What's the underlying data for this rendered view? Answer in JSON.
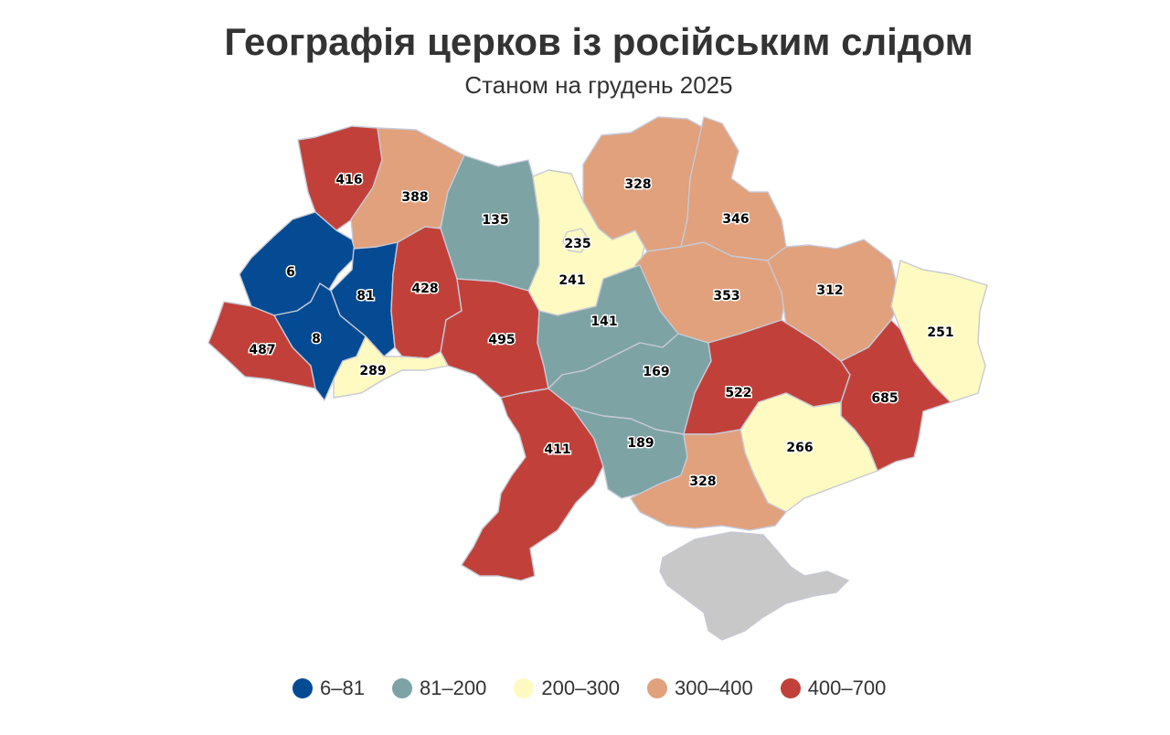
{
  "title": "Географія церков із російським слідом",
  "subtitle": "Станом на грудень 2025",
  "colors": {
    "c1": "#044b94",
    "c2": "#7da3a5",
    "c3": "#fffac1",
    "c4": "#e0a17c",
    "c5": "#c1413a",
    "occupied": "#c8c8c8"
  },
  "legend": [
    {
      "label": "6–81",
      "color": "#044b94"
    },
    {
      "label": "81–200",
      "color": "#7da3a5"
    },
    {
      "label": "200–300",
      "color": "#fffac1"
    },
    {
      "label": "300–400",
      "color": "#e0a17c"
    },
    {
      "label": "400–700",
      "color": "#c1413a"
    }
  ],
  "regions": [
    {
      "id": "volyn",
      "value": 416
    },
    {
      "id": "rivne",
      "value": 388
    },
    {
      "id": "zhytomyr",
      "value": 135
    },
    {
      "id": "kyiv-oblast",
      "value": 235
    },
    {
      "id": "kyiv-city",
      "value": 241
    },
    {
      "id": "chernihiv",
      "value": 328
    },
    {
      "id": "sumy",
      "value": 346
    },
    {
      "id": "poltava",
      "value": 353
    },
    {
      "id": "kharkiv",
      "value": 312
    },
    {
      "id": "luhansk",
      "value": 251
    },
    {
      "id": "lviv",
      "value": 6
    },
    {
      "id": "ternopil",
      "value": 81
    },
    {
      "id": "khmelnytskyi",
      "value": 428
    },
    {
      "id": "vinnytsia",
      "value": 495
    },
    {
      "id": "cherkasy",
      "value": 141
    },
    {
      "id": "zakarpattia",
      "value": 487
    },
    {
      "id": "ivano-frankivsk",
      "value": 8
    },
    {
      "id": "chernivtsi",
      "value": 289
    },
    {
      "id": "kirovohrad",
      "value": 169
    },
    {
      "id": "dnipropetrovsk",
      "value": 522
    },
    {
      "id": "donetsk",
      "value": 685
    },
    {
      "id": "zaporizhzhia",
      "value": 266
    },
    {
      "id": "odesa",
      "value": 411
    },
    {
      "id": "mykolaiv",
      "value": 189
    },
    {
      "id": "kherson",
      "value": 328
    }
  ]
}
